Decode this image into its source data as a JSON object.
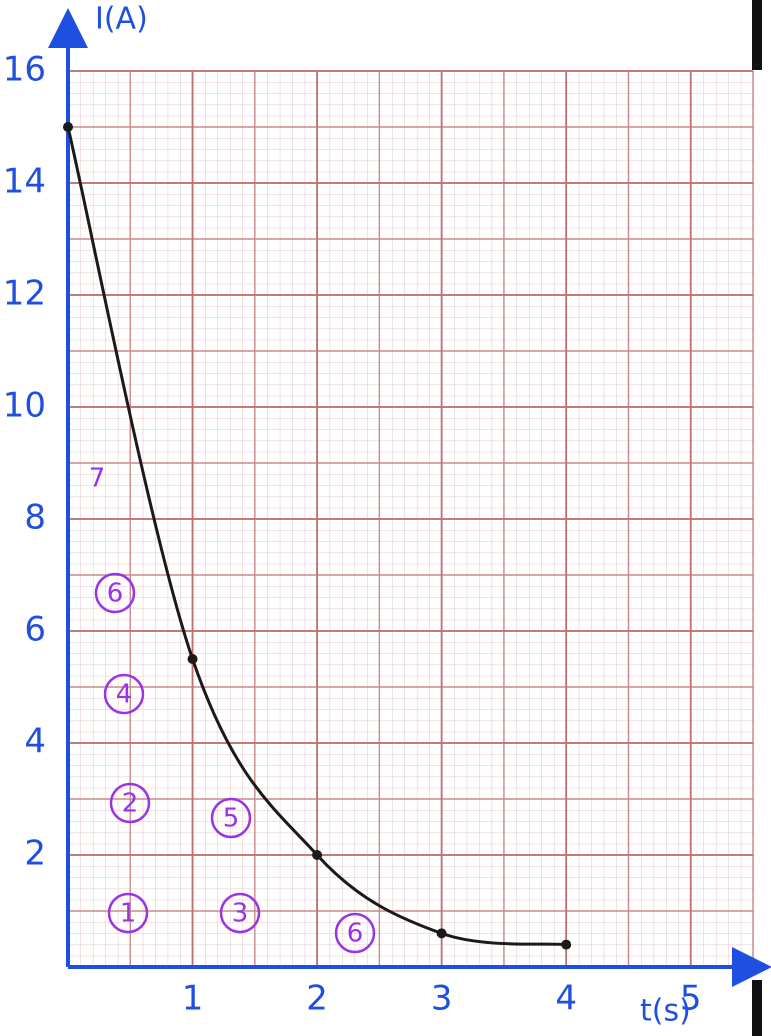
{
  "chart_data": {
    "type": "line",
    "x_label": "t(s)",
    "y_label": "I(A)",
    "x": [
      0,
      1,
      2,
      3,
      4
    ],
    "series": [
      {
        "color": "#1a1a1a",
        "values": [
          15,
          5.5,
          2,
          0.6,
          0.4
        ]
      }
    ],
    "xlim": [
      0,
      5.5
    ],
    "ylim": [
      0,
      16
    ],
    "xticks": [
      1,
      2,
      3,
      4,
      5
    ],
    "yticks": [
      2,
      4,
      6,
      8,
      10,
      12,
      14,
      16
    ],
    "grid": true,
    "annotations": [
      "7",
      "6",
      "4",
      "2",
      "5",
      "1",
      "3",
      "6"
    ]
  }
}
